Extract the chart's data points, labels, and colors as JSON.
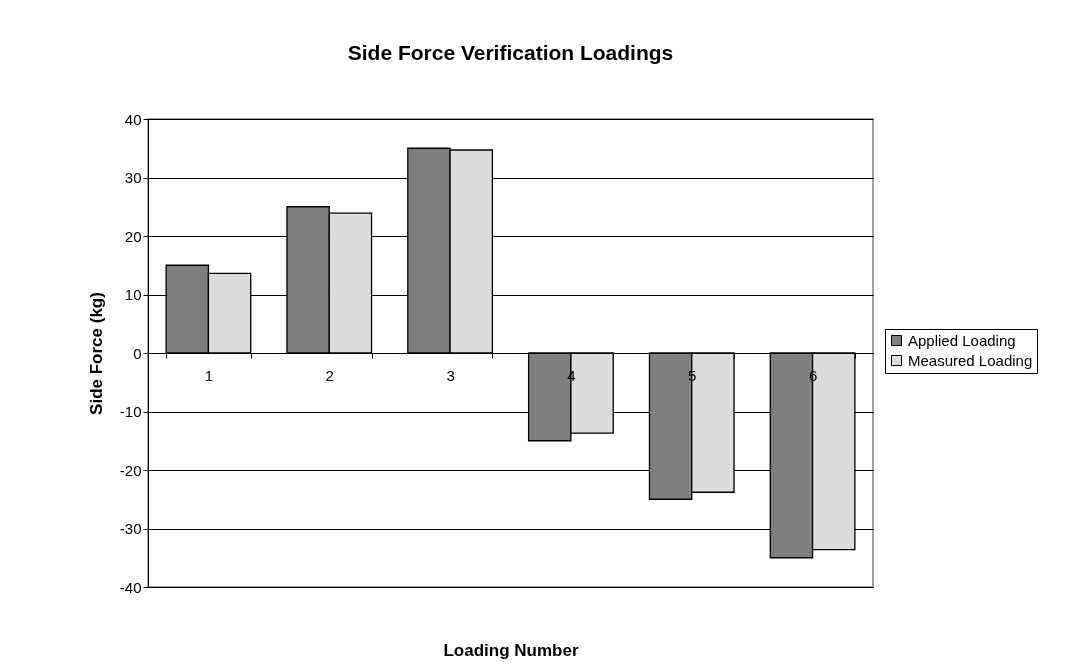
{
  "chart_data": {
    "type": "bar",
    "title": "Side Force Verification Loadings",
    "xlabel": "Loading Number",
    "ylabel": "Side Force (kg)",
    "categories": [
      "1",
      "2",
      "3",
      "4",
      "5",
      "6"
    ],
    "series": [
      {
        "name": "Applied Loading",
        "color": "#7f7f7f",
        "values": [
          15,
          25,
          35,
          -15,
          -25,
          -35
        ]
      },
      {
        "name": "Measured Loading",
        "color": "#dcdcdc",
        "values": [
          13.6,
          23.9,
          34.7,
          -13.7,
          -23.8,
          -33.6
        ]
      }
    ],
    "ylim": [
      -40,
      40
    ],
    "yticks": [
      -40,
      -30,
      -20,
      -10,
      0,
      10,
      20,
      30,
      40
    ],
    "grid": "y",
    "legend": "right"
  }
}
